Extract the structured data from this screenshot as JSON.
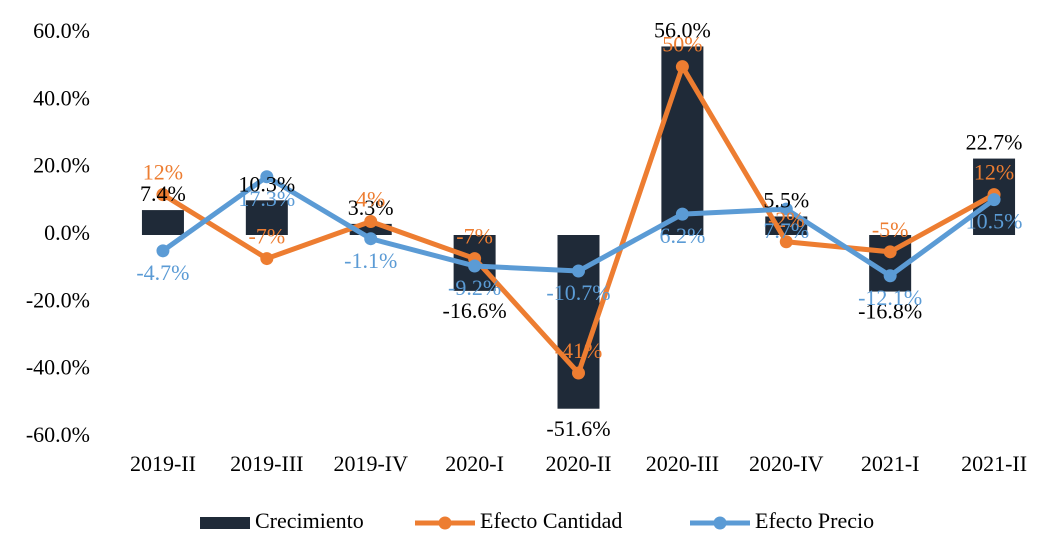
{
  "chart_data": {
    "type": "bar-line",
    "categories": [
      "2019-II",
      "2019-III",
      "2019-IV",
      "2020-I",
      "2020-II",
      "2020-III",
      "2020-IV",
      "2021-I",
      "2021-II"
    ],
    "series": [
      {
        "name": "Crecimiento",
        "type": "bar",
        "color": "#1f2a38",
        "values": [
          7.4,
          10.3,
          3.3,
          -16.6,
          -51.6,
          56.0,
          5.5,
          -16.8,
          22.7
        ],
        "value_labels": [
          "7.4%",
          "10.3%",
          "3.3%",
          "-16.6%",
          "-51.6%",
          "56.0%",
          "5.5%",
          "-16.8%",
          "22.7%"
        ]
      },
      {
        "name": "Efecto Cantidad",
        "type": "line",
        "color": "#ed7d31",
        "values": [
          12,
          -7,
          4,
          -7,
          -41,
          50,
          -2,
          -5,
          12
        ],
        "value_labels": [
          "12%",
          "-7%",
          "4%",
          "-7%",
          "-41%",
          "50%",
          "-2%",
          "-5%",
          "12%"
        ]
      },
      {
        "name": "Efecto Precio",
        "type": "line",
        "color": "#5b9bd5",
        "values": [
          -4.7,
          17.3,
          -1.1,
          -9.2,
          -10.7,
          6.2,
          7.7,
          -12.1,
          10.5
        ],
        "value_labels": [
          "-4.7%",
          "17.3%",
          "-1.1%",
          "-9.2%",
          "-10.7%",
          "6.2%",
          "7.7%",
          "-12.1%",
          "10.5%"
        ]
      }
    ],
    "ylim": [
      -60,
      60
    ],
    "yticks": [
      {
        "value": 60,
        "label": "60.0%"
      },
      {
        "value": 40,
        "label": "40.0%"
      },
      {
        "value": 20,
        "label": "20.0%"
      },
      {
        "value": 0,
        "label": "0.0%"
      },
      {
        "value": -20,
        "label": "-20.0%"
      },
      {
        "value": -40,
        "label": "-40.0%"
      },
      {
        "value": -60,
        "label": "-60.0%"
      }
    ],
    "grid": false,
    "legend": "bottom"
  }
}
